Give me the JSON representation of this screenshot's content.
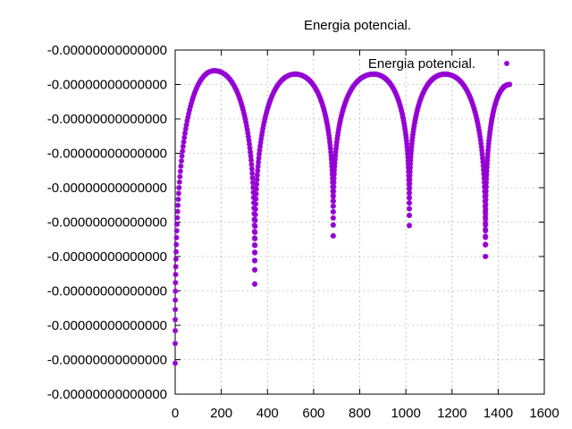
{
  "chart_data": {
    "type": "scatter",
    "title": "Energia potencial.",
    "xlabel": "",
    "ylabel": "",
    "xlim": [
      0,
      1600
    ],
    "ylim": [
      0,
      10
    ],
    "x_ticks": [
      0,
      200,
      400,
      600,
      800,
      1000,
      1200,
      1400,
      1600
    ],
    "y_ticks": [
      0,
      1,
      2,
      3,
      4,
      5,
      6,
      7,
      8,
      9,
      10
    ],
    "y_tick_labels": [
      "-0.00000000000000",
      "-0.00000000000000",
      "-0.00000000000000",
      "-0.00000000000000",
      "-0.00000000000000",
      "-0.00000000000000",
      "-0.00000000000000",
      "-0.00000000000000",
      "-0.00000000000000",
      "-0.00000000000000",
      "-0.00000000000000"
    ],
    "grid": true,
    "legend_position": "top-right",
    "series": [
      {
        "name": "Energia potencial.",
        "color": "#9400d3",
        "marker": "star",
        "segments": [
          {
            "x_start": 0,
            "x_end": 170,
            "y_start": 0.9,
            "y_peak": 9.4,
            "y_end": 9.4,
            "shape": "rise"
          },
          {
            "x_start": 170,
            "x_end": 345,
            "y_start": 9.4,
            "y_peak": 9.4,
            "y_end": 3.2,
            "shape": "fall"
          },
          {
            "x_start": 345,
            "x_end": 520,
            "y_start": 3.2,
            "y_peak": 9.3,
            "y_end": 9.3,
            "shape": "rise"
          },
          {
            "x_start": 520,
            "x_end": 685,
            "y_start": 9.3,
            "y_peak": 9.3,
            "y_end": 4.6,
            "shape": "fall"
          },
          {
            "x_start": 685,
            "x_end": 860,
            "y_start": 4.6,
            "y_peak": 9.3,
            "y_end": 9.3,
            "shape": "rise"
          },
          {
            "x_start": 860,
            "x_end": 1015,
            "y_start": 9.3,
            "y_peak": 9.3,
            "y_end": 4.9,
            "shape": "fall"
          },
          {
            "x_start": 1015,
            "x_end": 1170,
            "y_start": 4.9,
            "y_peak": 9.3,
            "y_end": 9.3,
            "shape": "rise"
          },
          {
            "x_start": 1170,
            "x_end": 1345,
            "y_start": 9.3,
            "y_peak": 9.3,
            "y_end": 4.0,
            "shape": "fall"
          },
          {
            "x_start": 1345,
            "x_end": 1450,
            "y_start": 4.0,
            "y_peak": 9.0,
            "y_end": 9.0,
            "shape": "rise"
          }
        ]
      }
    ]
  }
}
